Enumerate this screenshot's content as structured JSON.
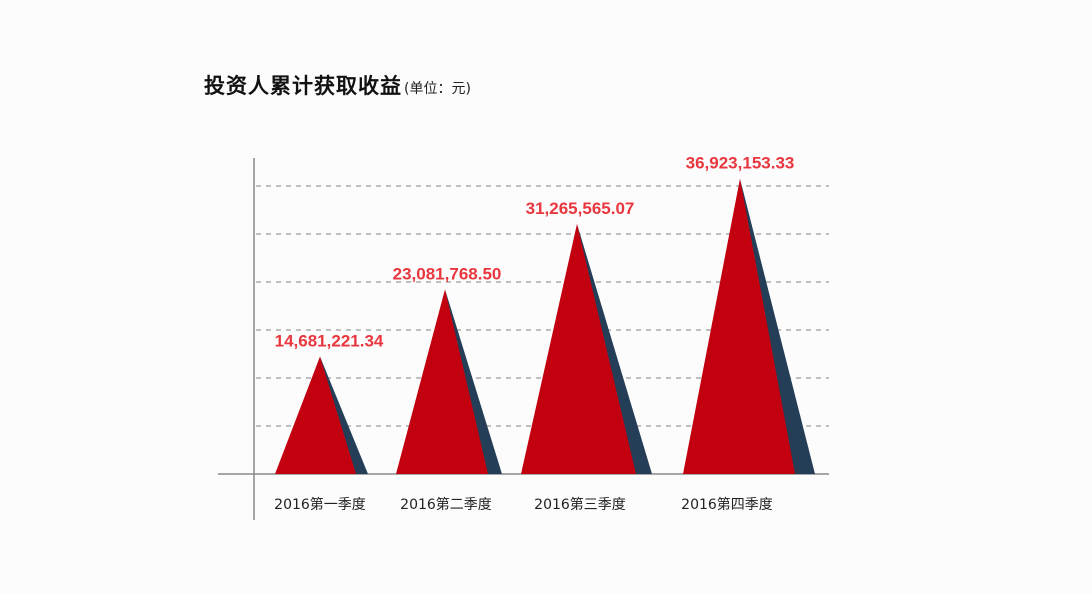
{
  "title": "投资人累计获取收益",
  "unit": "(单位：元)",
  "colors": {
    "peak_front": "#c2000f",
    "peak_shadow": "#243e57",
    "value_label": "#e8373f",
    "grid": "#9a9a9a",
    "axis": "#8a8a8a"
  },
  "chart_data": {
    "type": "bar",
    "bar_shape": "triangle",
    "title": "投资人累计获取收益",
    "unit": "(单位：元)",
    "categories": [
      "2016第一季度",
      "2016第二季度",
      "2016第三季度",
      "2016第四季度"
    ],
    "values": [
      14681221.34,
      23081768.5,
      31265565.07,
      36923153.33
    ],
    "value_labels": [
      "14,681,221.34",
      "23,081,768.50",
      "31,265,565.07",
      "36,923,153.33"
    ],
    "ylim": [
      0,
      36000000
    ],
    "grid": true,
    "legend": "none"
  }
}
